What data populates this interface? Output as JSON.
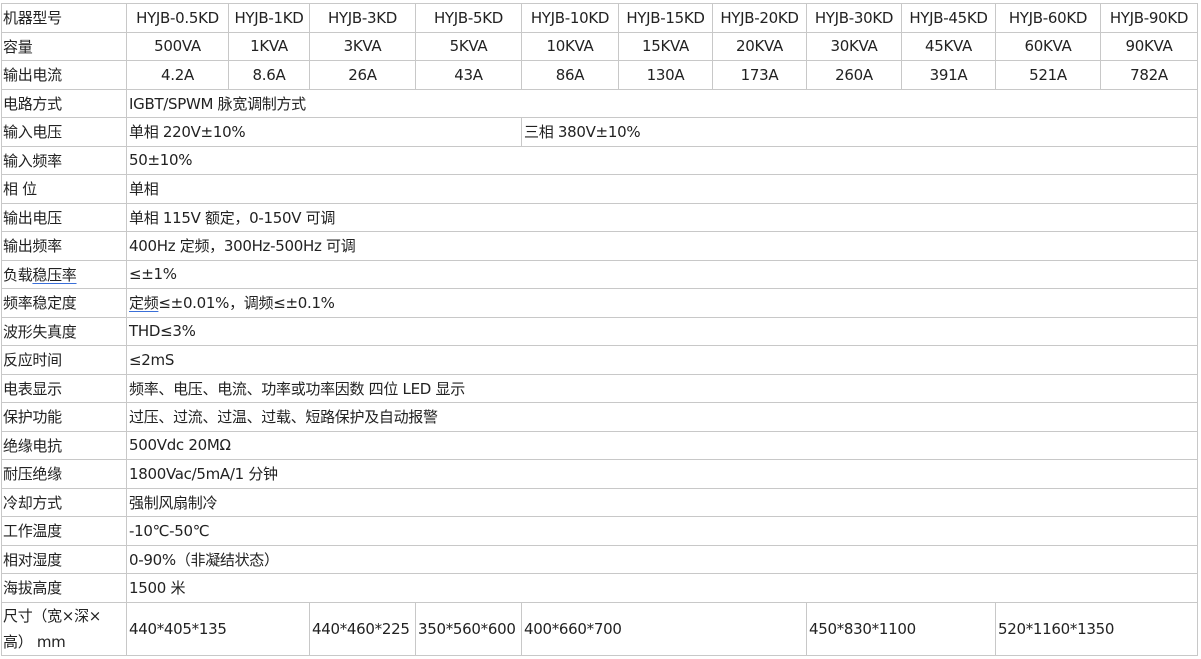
{
  "models": [
    "HYJB-0.5KD",
    "HYJB-1KD",
    "HYJB-3KD",
    "HYJB-5KD",
    "HYJB-10KD",
    "HYJB-15KD",
    "HYJB-20KD",
    "HYJB-30KD",
    "HYJB-45KD",
    "HYJB-60KD",
    "HYJB-90KD"
  ],
  "labels": {
    "model": "机器型号",
    "capacity": "容量",
    "current": "输出电流",
    "circuit": "电路方式",
    "input_voltage": "输入电压",
    "input_freq": "输入频率",
    "phase": "相 位",
    "output_voltage": "输出电压",
    "output_freq": "输出频率",
    "load_reg_a": "负载",
    "load_reg_b": "稳压率",
    "freq_stab": "频率稳定度",
    "thd": "波形失真度",
    "response": "反应时间",
    "meter": "电表显示",
    "protection": "保护功能",
    "insulation": "绝缘电抗",
    "withstand": "耐压绝缘",
    "cooling": "冷却方式",
    "temp": "工作温度",
    "humidity": "相对湿度",
    "altitude": "海拔高度",
    "size": "尺寸（宽×深×高） mm"
  },
  "capacity": [
    "500VA",
    "1KVA",
    "3KVA",
    "5KVA",
    "10KVA",
    "15KVA",
    "20KVA",
    "30KVA",
    "45KVA",
    "60KVA",
    "90KVA"
  ],
  "current": [
    "4.2A",
    "8.6A",
    "26A",
    "43A",
    "86A",
    "130A",
    "173A",
    "260A",
    "391A",
    "521A",
    "782A"
  ],
  "values": {
    "circuit": "IGBT/SPWM 脉宽调制方式",
    "input_voltage_single": "单相 220V±10%",
    "input_voltage_three": "三相 380V±10%",
    "input_freq": "50±10%",
    "phase": "单相",
    "output_voltage": "单相 115V 额定，0-150V 可调",
    "output_freq": "400Hz 定频，300Hz-500Hz 可调",
    "load_reg": "≤±1%",
    "freq_stab_a": "定频",
    "freq_stab_b": "≤±0.01%，调频≤±0.1%",
    "thd": "THD≤3%",
    "response": "≤2mS",
    "meter": "频率、电压、电流、功率或功率因数 四位 LED 显示",
    "protection": "过压、过流、过温、过载、短路保护及自动报警",
    "insulation": "500Vdc 20MΩ",
    "withstand": "1800Vac/5mA/1 分钟",
    "cooling": "强制风扇制冷",
    "temp": "-10℃-50℃",
    "humidity": "0-90%（非凝结状态）",
    "altitude": "1500 米"
  },
  "sizes": [
    "440*405*135",
    "440*460*225",
    "350*560*600",
    "400*660*700",
    "450*830*1100",
    "520*1160*1350"
  ]
}
